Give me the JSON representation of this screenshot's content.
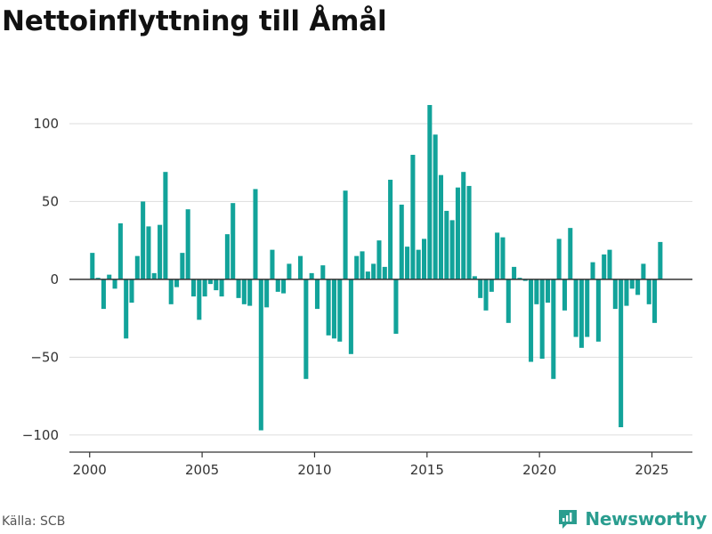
{
  "title": "Nettoinflyttning till Åmål",
  "source": "Källa: SCB",
  "brand": {
    "name": "Newsworthy",
    "icon": "newsworthy-logo-icon",
    "color": "#2a9d8f"
  },
  "colors": {
    "bar": "#12a39a",
    "grid": "#dddddd",
    "zero_line": "#333333",
    "axis": "#333333"
  },
  "chart_data": {
    "type": "bar",
    "title": "Nettoinflyttning till Åmål",
    "xlabel": "",
    "ylabel": "",
    "x_ticks": [
      2000,
      2005,
      2010,
      2015,
      2020,
      2025
    ],
    "y_ticks": [
      -100,
      -50,
      0,
      50,
      100
    ],
    "y_tick_labels": [
      "−100",
      "−50",
      "0",
      "50",
      "100"
    ],
    "xlim": [
      1999.1,
      2026.8
    ],
    "ylim": [
      -111,
      128
    ],
    "grid": true,
    "bar_width_years": 0.2,
    "series": [
      {
        "values": [
          {
            "x": 2000.12,
            "y": 17
          },
          {
            "x": 2000.37,
            "y": 1
          },
          {
            "x": 2000.62,
            "y": -19
          },
          {
            "x": 2000.87,
            "y": 3
          },
          {
            "x": 2001.12,
            "y": -6
          },
          {
            "x": 2001.37,
            "y": 36
          },
          {
            "x": 2001.62,
            "y": -38
          },
          {
            "x": 2001.87,
            "y": -15
          },
          {
            "x": 2002.12,
            "y": 15
          },
          {
            "x": 2002.37,
            "y": 50
          },
          {
            "x": 2002.62,
            "y": 34
          },
          {
            "x": 2002.87,
            "y": 4
          },
          {
            "x": 2003.12,
            "y": 35
          },
          {
            "x": 2003.37,
            "y": 69
          },
          {
            "x": 2003.62,
            "y": -16
          },
          {
            "x": 2003.87,
            "y": -5
          },
          {
            "x": 2004.12,
            "y": 17
          },
          {
            "x": 2004.37,
            "y": 45
          },
          {
            "x": 2004.62,
            "y": -11
          },
          {
            "x": 2004.87,
            "y": -26
          },
          {
            "x": 2005.12,
            "y": -11
          },
          {
            "x": 2005.37,
            "y": -3
          },
          {
            "x": 2005.62,
            "y": -7
          },
          {
            "x": 2005.87,
            "y": -11
          },
          {
            "x": 2006.12,
            "y": 29
          },
          {
            "x": 2006.37,
            "y": 49
          },
          {
            "x": 2006.62,
            "y": -12
          },
          {
            "x": 2006.87,
            "y": -16
          },
          {
            "x": 2007.12,
            "y": -17
          },
          {
            "x": 2007.37,
            "y": 58
          },
          {
            "x": 2007.62,
            "y": -97
          },
          {
            "x": 2007.87,
            "y": -18
          },
          {
            "x": 2008.12,
            "y": 19
          },
          {
            "x": 2008.37,
            "y": -8
          },
          {
            "x": 2008.62,
            "y": -9
          },
          {
            "x": 2008.87,
            "y": 10
          },
          {
            "x": 2009.12,
            "y": 0
          },
          {
            "x": 2009.37,
            "y": 15
          },
          {
            "x": 2009.62,
            "y": -64
          },
          {
            "x": 2009.87,
            "y": 4
          },
          {
            "x": 2010.12,
            "y": -19
          },
          {
            "x": 2010.37,
            "y": 9
          },
          {
            "x": 2010.62,
            "y": -36
          },
          {
            "x": 2010.87,
            "y": -38
          },
          {
            "x": 2011.12,
            "y": -40
          },
          {
            "x": 2011.37,
            "y": 57
          },
          {
            "x": 2011.62,
            "y": -48
          },
          {
            "x": 2011.87,
            "y": 15
          },
          {
            "x": 2012.12,
            "y": 18
          },
          {
            "x": 2012.37,
            "y": 5
          },
          {
            "x": 2012.62,
            "y": 10
          },
          {
            "x": 2012.87,
            "y": 25
          },
          {
            "x": 2013.12,
            "y": 8
          },
          {
            "x": 2013.37,
            "y": 64
          },
          {
            "x": 2013.62,
            "y": -35
          },
          {
            "x": 2013.87,
            "y": 48
          },
          {
            "x": 2014.12,
            "y": 21
          },
          {
            "x": 2014.37,
            "y": 80
          },
          {
            "x": 2014.62,
            "y": 19
          },
          {
            "x": 2014.87,
            "y": 26
          },
          {
            "x": 2015.12,
            "y": 112
          },
          {
            "x": 2015.37,
            "y": 93
          },
          {
            "x": 2015.62,
            "y": 67
          },
          {
            "x": 2015.87,
            "y": 44
          },
          {
            "x": 2016.12,
            "y": 38
          },
          {
            "x": 2016.37,
            "y": 59
          },
          {
            "x": 2016.62,
            "y": 69
          },
          {
            "x": 2016.87,
            "y": 60
          },
          {
            "x": 2017.12,
            "y": 2
          },
          {
            "x": 2017.37,
            "y": -12
          },
          {
            "x": 2017.62,
            "y": -20
          },
          {
            "x": 2017.87,
            "y": -8
          },
          {
            "x": 2018.12,
            "y": 30
          },
          {
            "x": 2018.37,
            "y": 27
          },
          {
            "x": 2018.62,
            "y": -28
          },
          {
            "x": 2018.87,
            "y": 8
          },
          {
            "x": 2019.12,
            "y": 1
          },
          {
            "x": 2019.37,
            "y": -1
          },
          {
            "x": 2019.62,
            "y": -53
          },
          {
            "x": 2019.87,
            "y": -16
          },
          {
            "x": 2020.12,
            "y": -51
          },
          {
            "x": 2020.37,
            "y": -15
          },
          {
            "x": 2020.62,
            "y": -64
          },
          {
            "x": 2020.87,
            "y": 26
          },
          {
            "x": 2021.12,
            "y": -20
          },
          {
            "x": 2021.37,
            "y": 33
          },
          {
            "x": 2021.62,
            "y": -37
          },
          {
            "x": 2021.87,
            "y": -44
          },
          {
            "x": 2022.12,
            "y": -37
          },
          {
            "x": 2022.37,
            "y": 11
          },
          {
            "x": 2022.62,
            "y": -40
          },
          {
            "x": 2022.87,
            "y": 16
          },
          {
            "x": 2023.12,
            "y": 19
          },
          {
            "x": 2023.37,
            "y": -19
          },
          {
            "x": 2023.62,
            "y": -95
          },
          {
            "x": 2023.87,
            "y": -17
          },
          {
            "x": 2024.12,
            "y": -6
          },
          {
            "x": 2024.37,
            "y": -10
          },
          {
            "x": 2024.62,
            "y": 10
          },
          {
            "x": 2024.87,
            "y": -16
          },
          {
            "x": 2025.12,
            "y": -28
          },
          {
            "x": 2025.37,
            "y": 24
          }
        ]
      }
    ]
  }
}
